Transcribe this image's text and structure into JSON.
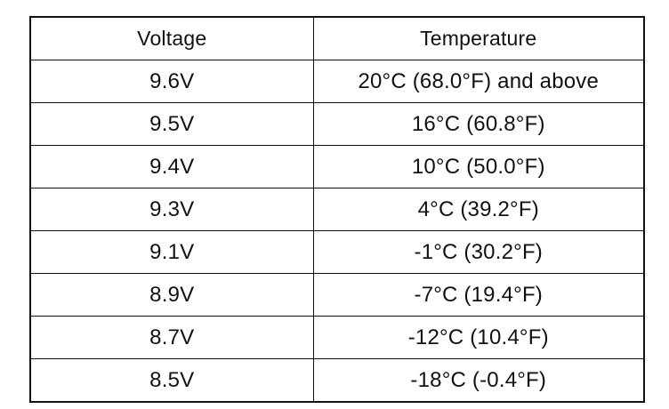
{
  "table": {
    "headers": {
      "voltage": "Voltage",
      "temperature": "Temperature"
    },
    "rows": [
      {
        "voltage": "9.6V",
        "temperature": "20°C (68.0°F) and above"
      },
      {
        "voltage": "9.5V",
        "temperature": "16°C (60.8°F)"
      },
      {
        "voltage": "9.4V",
        "temperature": "10°C (50.0°F)"
      },
      {
        "voltage": "9.3V",
        "temperature": "4°C (39.2°F)"
      },
      {
        "voltage": "9.1V",
        "temperature": "-1°C (30.2°F)"
      },
      {
        "voltage": "8.9V",
        "temperature": "-7°C (19.4°F)"
      },
      {
        "voltage": "8.7V",
        "temperature": "-12°C (10.4°F)"
      },
      {
        "voltage": "8.5V",
        "temperature": "-18°C (-0.4°F)"
      }
    ]
  }
}
